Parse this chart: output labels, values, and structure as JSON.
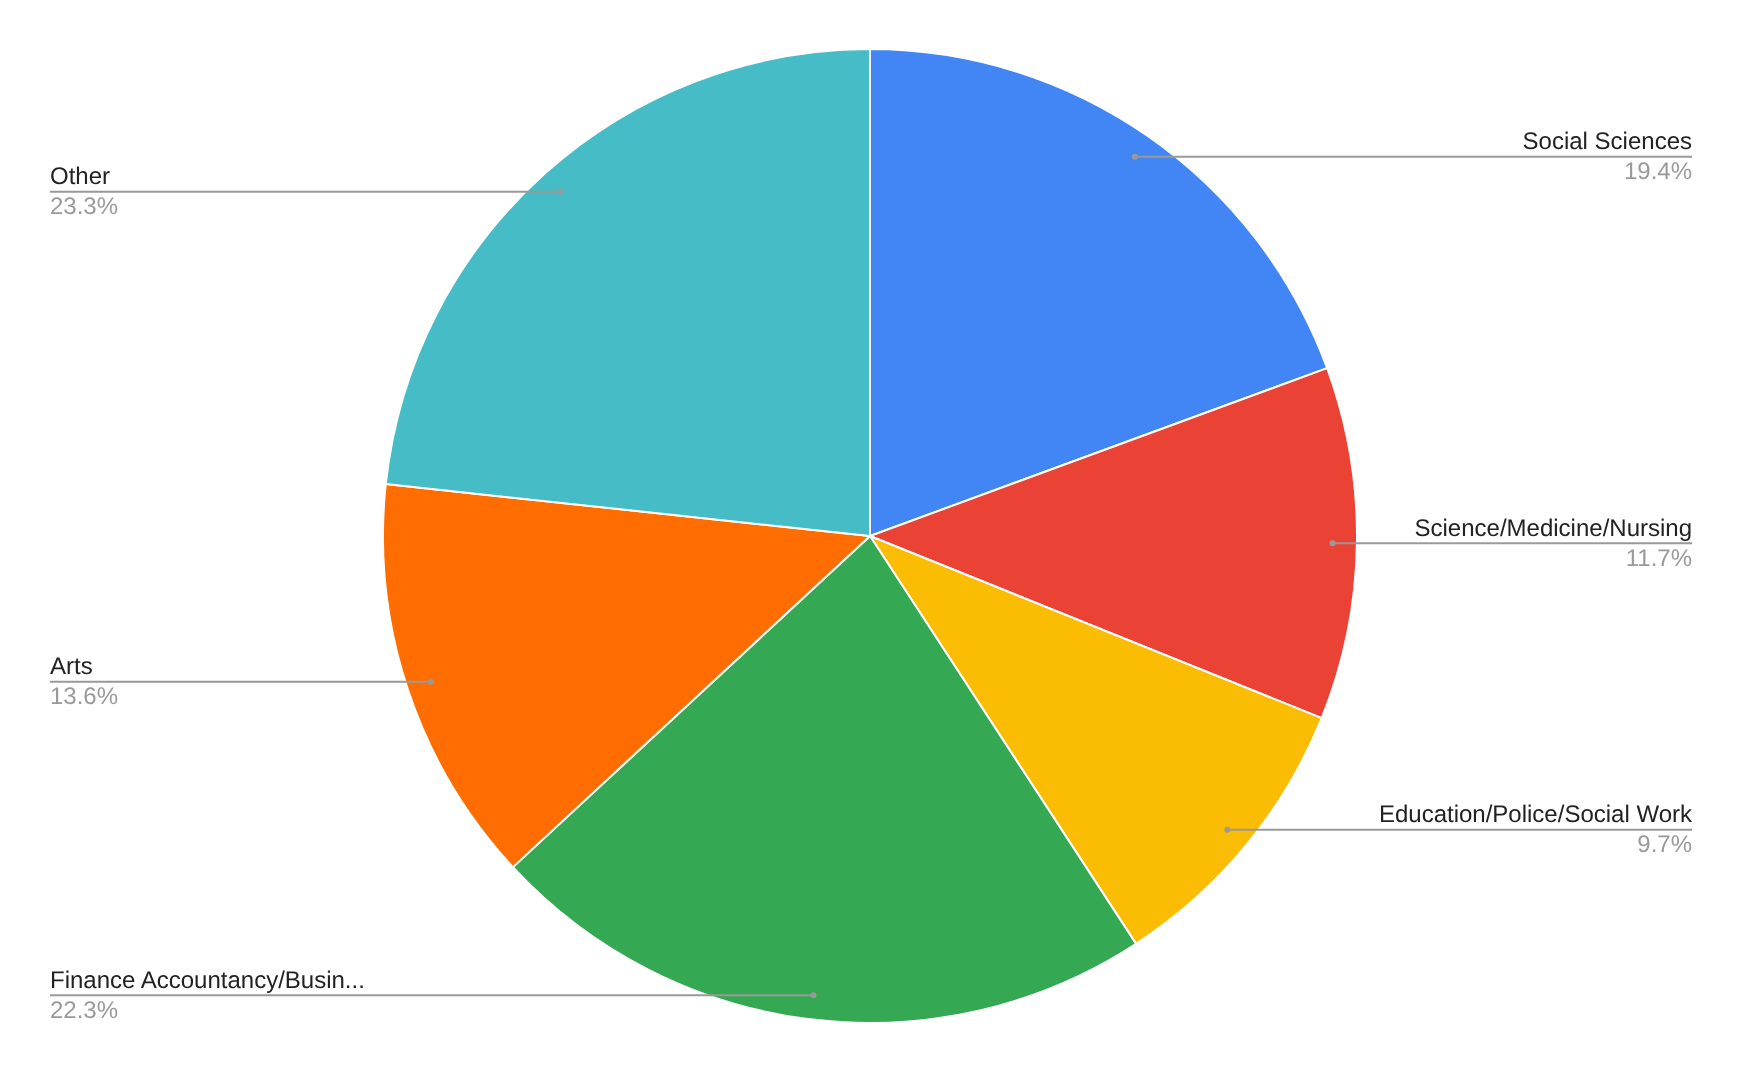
{
  "chart_data": {
    "type": "pie",
    "categories": [
      "Social Sciences",
      "Science/Medicine/Nursing",
      "Education/Police/Social Work",
      "Finance Accountancy/Busin...",
      "Arts",
      "Other"
    ],
    "values": [
      19.4,
      11.7,
      9.7,
      22.3,
      13.6,
      23.3
    ],
    "colors": [
      "#4285f4",
      "#ea4335",
      "#fbbc04",
      "#34a853",
      "#ff6d01",
      "#46bdc6"
    ],
    "value_labels": [
      "19.4%",
      "11.7%",
      "9.7%",
      "22.3%",
      "13.6%",
      "23.3%"
    ],
    "legend": false
  }
}
